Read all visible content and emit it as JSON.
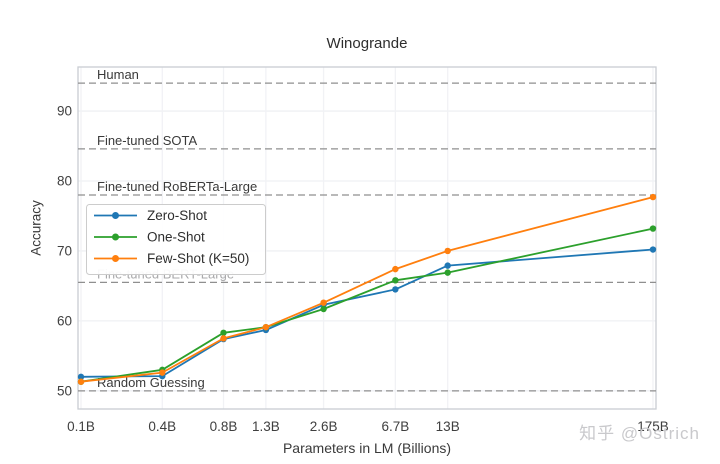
{
  "page": {
    "watermark": "知乎 @Ostrich"
  },
  "chart_data": {
    "type": "line",
    "title": "Winogrande",
    "xlabel": "Parameters in LM (Billions)",
    "ylabel": "Accuracy",
    "xscale": "log",
    "x_tick_labels": [
      "0.1B",
      "0.4B",
      "0.8B",
      "1.3B",
      "2.6B",
      "6.7B",
      "13B",
      "175B"
    ],
    "x_values": [
      0.125,
      0.35,
      0.76,
      1.3,
      2.7,
      6.7,
      13,
      175
    ],
    "yticks": [
      50,
      60,
      70,
      80,
      90
    ],
    "ylim": [
      47.4,
      96.3
    ],
    "xlim": [
      0.12,
      178
    ],
    "grid": true,
    "legend_position": "upper-left",
    "series": [
      {
        "name": "Zero-Shot",
        "color": "#1f77b4",
        "values": [
          52.0,
          52.1,
          57.4,
          58.7,
          62.3,
          64.5,
          67.9,
          70.2
        ]
      },
      {
        "name": "One-Shot",
        "color": "#2ca02c",
        "values": [
          51.3,
          53.0,
          58.3,
          59.1,
          61.7,
          65.8,
          66.9,
          73.2
        ]
      },
      {
        "name": "Few-Shot (K=50)",
        "color": "#ff7f0e",
        "values": [
          51.3,
          52.6,
          57.5,
          59.1,
          62.6,
          67.4,
          70.0,
          77.7
        ]
      }
    ],
    "reference_lines": [
      {
        "label": "Human",
        "value": 94.0,
        "muted": false
      },
      {
        "label": "Fine-tuned SOTA",
        "value": 84.6,
        "muted": false
      },
      {
        "label": "Fine-tuned RoBERTa-Large",
        "value": 78.0,
        "muted": false
      },
      {
        "label": "Fine-tuned BERT-Large",
        "value": 65.5,
        "muted": true
      },
      {
        "label": "Random Guessing",
        "value": 50.0,
        "muted": false
      }
    ]
  }
}
